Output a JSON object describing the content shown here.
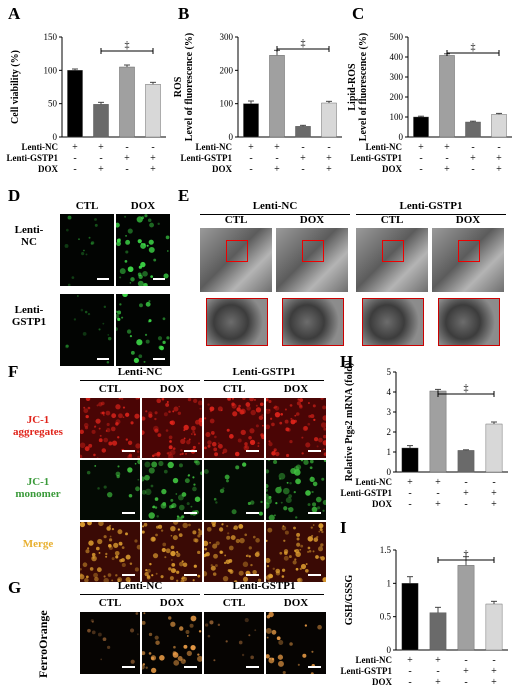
{
  "panels": {
    "A": "A",
    "B": "B",
    "C": "C",
    "D": "D",
    "E": "E",
    "F": "F",
    "G": "G",
    "H": "H",
    "I": "I"
  },
  "sig": {
    "A": "‡",
    "B": "‡",
    "C": "‡",
    "H": "‡",
    "I": "†"
  },
  "chart_data": [
    {
      "type": "bar",
      "panel": "A",
      "ylabel": "Cell viability (%)",
      "ylim": [
        0,
        150
      ],
      "yticks": [
        0,
        50,
        100,
        150
      ],
      "categories": [
        "Lenti-NC + , Lenti-GSTP1 - , DOX -",
        "Lenti-NC + , Lenti-GSTP1 - , DOX +",
        "Lenti-NC - , Lenti-GSTP1 + , DOX -",
        "Lenti-NC - , Lenti-GSTP1 + , DOX +"
      ],
      "values": [
        100,
        49,
        105,
        79
      ],
      "errors": [
        2,
        3,
        3,
        3
      ],
      "colors": [
        "#000000",
        "#6a6a6a",
        "#a0a0a0",
        "#d8d8d8"
      ]
    },
    {
      "type": "bar",
      "panel": "B",
      "ylabel": "ROS",
      "ylabel2": "Level of fluorescence (%)",
      "ylim": [
        0,
        300
      ],
      "yticks": [
        0,
        100,
        200,
        300
      ],
      "values": [
        100,
        245,
        32,
        102
      ],
      "errors": [
        8,
        15,
        3,
        5
      ],
      "colors": [
        "#000000",
        "#a0a0a0",
        "#6a6a6a",
        "#d8d8d8"
      ]
    },
    {
      "type": "bar",
      "panel": "C",
      "ylabel": "Lipid-ROS",
      "ylabel2": "Level of fluorescence (%)",
      "ylim": [
        0,
        500
      ],
      "yticks": [
        0,
        100,
        200,
        300,
        400,
        500
      ],
      "values": [
        100,
        408,
        75,
        113
      ],
      "errors": [
        4,
        8,
        4,
        5
      ],
      "colors": [
        "#000000",
        "#a0a0a0",
        "#6a6a6a",
        "#d8d8d8"
      ]
    },
    {
      "type": "bar",
      "panel": "H",
      "ylabel": "Relative Ptgs2 mRNA (fold)",
      "ylim": [
        0,
        5
      ],
      "yticks": [
        0,
        1,
        2,
        3,
        4,
        5
      ],
      "values": [
        1.2,
        4.05,
        1.08,
        2.4
      ],
      "errors": [
        0.12,
        0.08,
        0.03,
        0.1
      ],
      "colors": [
        "#000000",
        "#a0a0a0",
        "#6a6a6a",
        "#d8d8d8"
      ]
    },
    {
      "type": "bar",
      "panel": "I",
      "ylabel": "GSH/GSSG",
      "ylim": [
        0,
        1.5
      ],
      "yticks": [
        0,
        0.5,
        1.0,
        1.5
      ],
      "values": [
        1.0,
        0.56,
        1.27,
        0.69
      ],
      "errors": [
        0.1,
        0.08,
        0.13,
        0.04
      ],
      "colors": [
        "#000000",
        "#6a6a6a",
        "#a0a0a0",
        "#d8d8d8"
      ]
    }
  ],
  "treatment": {
    "rows": [
      "Lenti-NC",
      "Lenti-GSTP1",
      "DOX"
    ],
    "signs": [
      [
        "+",
        "+",
        "-",
        "-"
      ],
      [
        "-",
        "-",
        "+",
        "+"
      ],
      [
        "-",
        "+",
        "-",
        "+"
      ]
    ]
  },
  "D": {
    "cols": [
      "CTL",
      "DOX"
    ],
    "rows": [
      "Lenti-\nNC",
      "Lenti-\nGSTP1"
    ]
  },
  "E": {
    "groups": [
      "Lenti-NC",
      "Lenti-GSTP1"
    ],
    "cols": [
      "CTL",
      "DOX",
      "CTL",
      "DOX"
    ]
  },
  "F": {
    "groups": [
      "Lenti-NC",
      "Lenti-GSTP1"
    ],
    "cols": [
      "CTL",
      "DOX",
      "CTL",
      "DOX"
    ],
    "rows": [
      {
        "l1": "JC-1",
        "l2": "aggregates",
        "color": "#e0241b"
      },
      {
        "l1": "JC-1",
        "l2": "monomer",
        "color": "#3a9a3a"
      },
      {
        "l1": "Merge",
        "l2": "",
        "color": "#e8b030"
      }
    ]
  },
  "G": {
    "groups": [
      "Lenti-NC",
      "Lenti-GSTP1"
    ],
    "cols": [
      "CTL",
      "DOX",
      "CTL",
      "DOX"
    ],
    "row": "FerroOrange"
  }
}
